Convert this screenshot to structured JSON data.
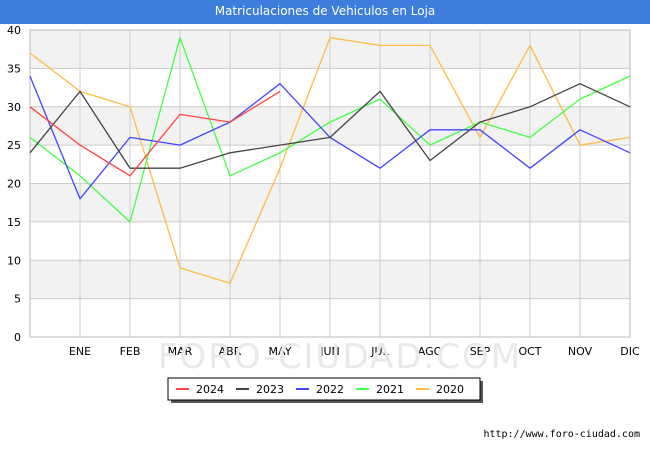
{
  "header": {
    "title": "Matriculaciones de Vehiculos en Loja"
  },
  "footer": {
    "url": "http://www.foro-ciudad.com"
  },
  "watermark": "FORO-CIUDAD.COM",
  "colors": {
    "title_bar": "#3d7ddb",
    "band": "#f2f2f2",
    "grid": "#cccccc"
  },
  "chart_data": {
    "type": "line",
    "title": "Matriculaciones de Vehiculos en Loja",
    "categories": [
      "",
      "ENE",
      "FEB",
      "MAR",
      "ABR",
      "MAY",
      "JUN",
      "JUL",
      "AGO",
      "SEP",
      "OCT",
      "NOV",
      "DIC"
    ],
    "ylim": [
      0,
      40
    ],
    "yticks": [
      0,
      5,
      10,
      15,
      20,
      25,
      30,
      35,
      40
    ],
    "grid": true,
    "legend_position": "bottom",
    "series": [
      {
        "name": "2024",
        "color": "#ff4444",
        "values": [
          30,
          25,
          21,
          29,
          28,
          32,
          null,
          null,
          null,
          null,
          null,
          null,
          null
        ]
      },
      {
        "name": "2023",
        "color": "#444444",
        "values": [
          24,
          32,
          22,
          22,
          24,
          25,
          26,
          32,
          23,
          28,
          30,
          33,
          30
        ]
      },
      {
        "name": "2022",
        "color": "#4444ff",
        "values": [
          34,
          18,
          26,
          25,
          28,
          33,
          26,
          22,
          27,
          27,
          22,
          27,
          24
        ]
      },
      {
        "name": "2021",
        "color": "#44ff44",
        "values": [
          26,
          21,
          15,
          39,
          21,
          24,
          28,
          31,
          25,
          28,
          26,
          31,
          34
        ]
      },
      {
        "name": "2020",
        "color": "#ffbb44",
        "values": [
          37,
          32,
          30,
          9,
          7,
          22,
          39,
          38,
          38,
          26,
          38,
          25,
          26
        ]
      }
    ]
  }
}
